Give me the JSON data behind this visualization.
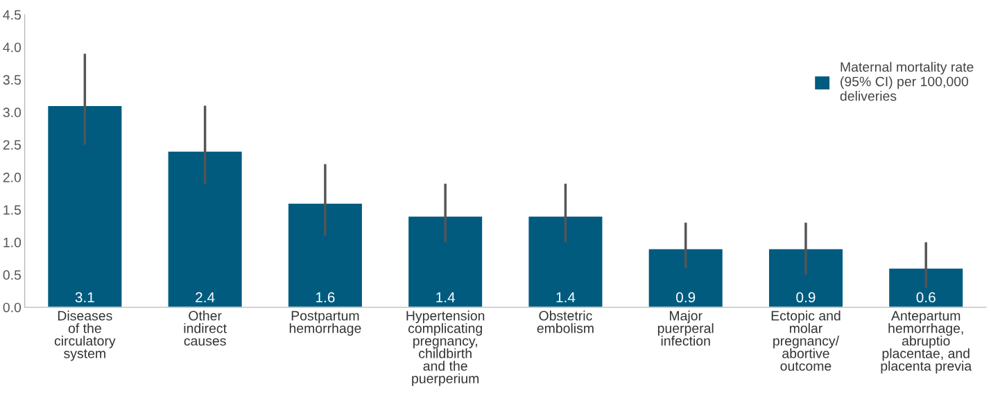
{
  "chart_data": {
    "type": "bar",
    "categories": [
      "Diseases\nof the\ncirculatory\nsystem",
      "Other\nindirect\ncauses",
      "Postpartum\nhemorrhage",
      "Hypertension\ncomplicating\npregnancy,\nchildbirth\nand the\npuerperium",
      "Obstetric\nembolism",
      "Major\npuerperal\ninfection",
      "Ectopic and\nmolar\npregnancy/\nabortive\noutcome",
      "Antepartum\nhemorrhage,\nabruptio\nplacentae, and\nplacenta previa"
    ],
    "series": [
      {
        "name": "Maternal mortality rate\n(95% CI) per 100,000\ndeliveries",
        "color": "#005b7f",
        "values": [
          3.1,
          2.4,
          1.6,
          1.4,
          1.4,
          0.9,
          0.9,
          0.6
        ],
        "errors": [
          [
            2.5,
            3.9
          ],
          [
            1.9,
            3.1
          ],
          [
            1.1,
            2.2
          ],
          [
            1.0,
            1.9
          ],
          [
            1.0,
            1.9
          ],
          [
            0.6,
            1.3
          ],
          [
            0.5,
            1.3
          ],
          [
            0.3,
            1.0
          ]
        ]
      }
    ],
    "ylim": [
      0,
      4.5
    ],
    "yticks": [
      {
        "value": 0,
        "label": "0.0"
      },
      {
        "value": 0.5,
        "label": "0.5"
      },
      {
        "value": 1.0,
        "label": "1.0"
      },
      {
        "value": 1.5,
        "label": "1.5"
      },
      {
        "value": 2.0,
        "label": "2.0"
      },
      {
        "value": 2.5,
        "label": "2.5"
      },
      {
        "value": 3.0,
        "label": "3.0"
      },
      {
        "value": 3.5,
        "label": "3.5"
      },
      {
        "value": 4.0,
        "label": "4.0"
      },
      {
        "value": 4.5,
        "label": "4.5"
      }
    ],
    "data_labels": true,
    "grid": false,
    "legend": "top right"
  }
}
